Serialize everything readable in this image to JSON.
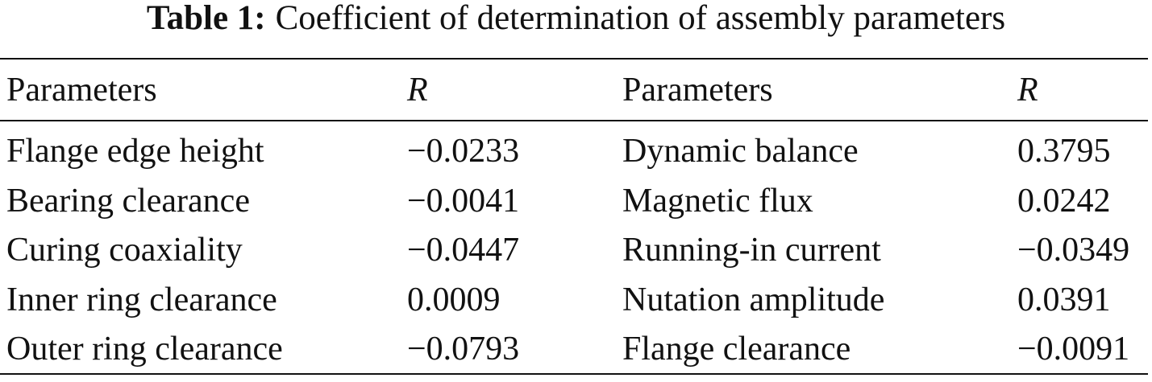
{
  "caption": {
    "label": "Table 1:",
    "text": "Coefficient of determination of assembly parameters"
  },
  "table": {
    "header": [
      "Parameters",
      "R",
      "Parameters",
      "R"
    ],
    "rows": [
      [
        "Flange edge height",
        "−0.0233",
        "Dynamic balance",
        "0.3795"
      ],
      [
        "Bearing clearance",
        "−0.0041",
        "Magnetic flux",
        "0.0242"
      ],
      [
        "Curing coaxiality",
        "−0.0447",
        "Running-in current",
        "−0.0349"
      ],
      [
        "Inner ring clearance",
        "0.0009",
        "Nutation amplitude",
        "0.0391"
      ],
      [
        "Outer ring clearance",
        "−0.0793",
        "Flange clearance",
        "−0.0091"
      ]
    ]
  }
}
